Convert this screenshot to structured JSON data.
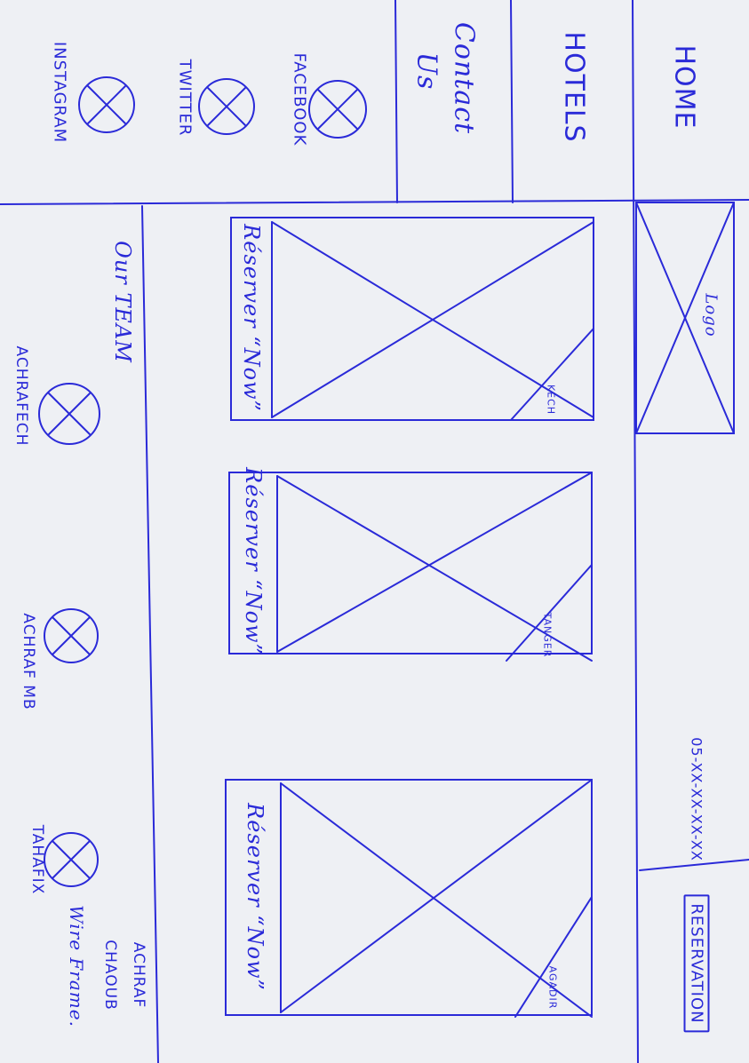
{
  "nav": {
    "home": "HOME",
    "hotels": "HOTELS",
    "contact_line1": "Contact",
    "contact_line2": "Us"
  },
  "social": {
    "facebook": "FACEBOOK",
    "twitter": "TWITTER",
    "instagram": "INSTAGRAM"
  },
  "header": {
    "logo": "Logo",
    "phone": "05-XX-XX-XX-XX",
    "reservation_button": "RESERVATION"
  },
  "hotels": [
    {
      "city": "KECH",
      "cta": "Réserver “Now”"
    },
    {
      "city": "TANGER",
      "cta": "Réserver “Now”"
    },
    {
      "city": "AGADIR",
      "cta": "Réserver “Now”"
    }
  ],
  "team": {
    "title": "Our TEAM",
    "members": [
      "ACHRAFECH",
      "ACHRAF MB",
      "TAHAFIX"
    ]
  },
  "credit": {
    "author_line1": "ACHRAF",
    "author_line2": "CHAOUB",
    "label": "Wire Frame."
  },
  "colors": {
    "ink": "#2a2ad8",
    "paper": "#eef0f4"
  }
}
